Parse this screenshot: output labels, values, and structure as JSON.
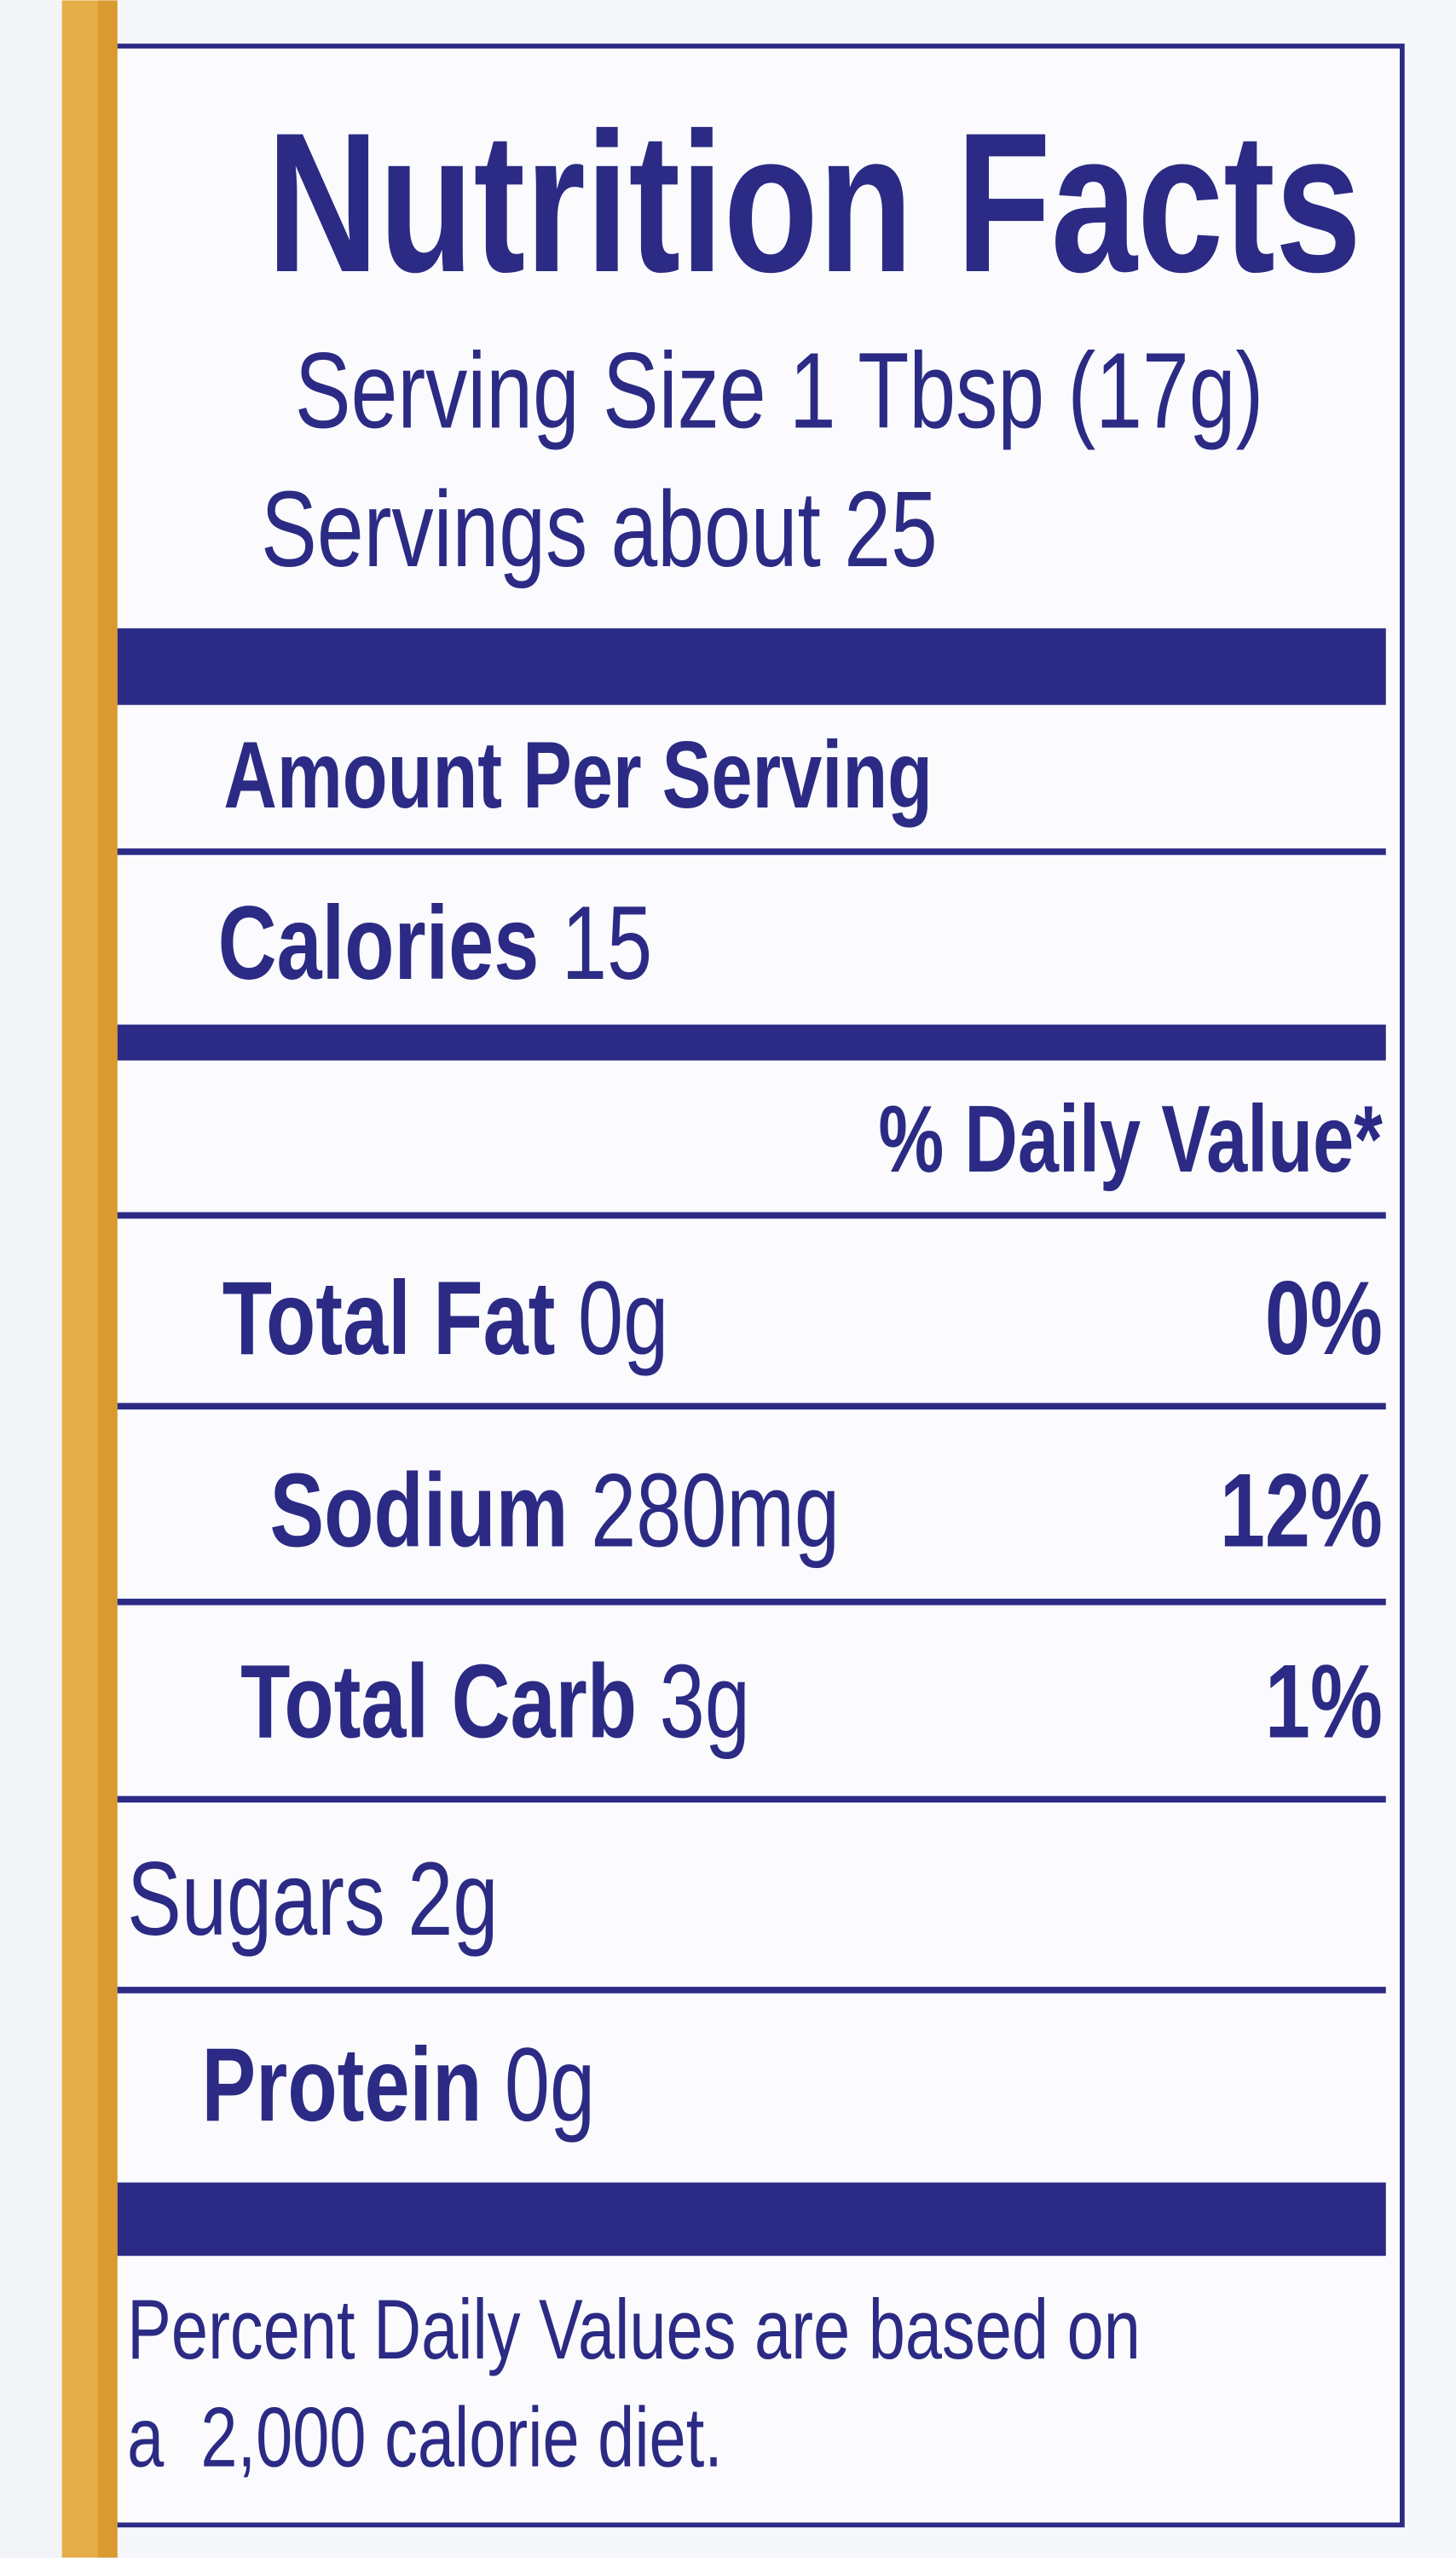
{
  "header": {
    "title": "Nutrition Facts",
    "serving_size": "Serving Size 1 Tbsp (17g)",
    "servings": "Servings about 25"
  },
  "amount_per_serving": "Amount Per Serving",
  "calories": {
    "label": "Calories",
    "value": "15"
  },
  "daily_value_header": "% Daily Value*",
  "nutrients": [
    {
      "name": "Total Fat",
      "amount": "0g",
      "dv": "0%"
    },
    {
      "name": "Sodium",
      "amount": "280mg",
      "dv": "12%"
    },
    {
      "name": "Total Carb",
      "amount": "3g",
      "dv": "1%"
    },
    {
      "name": "Sugars",
      "amount": "2g"
    },
    {
      "name": "Protein",
      "amount": "0g"
    }
  ],
  "footnote": [
    "Percent Daily Values are based on",
    "a  2,000 calorie diet."
  ]
}
